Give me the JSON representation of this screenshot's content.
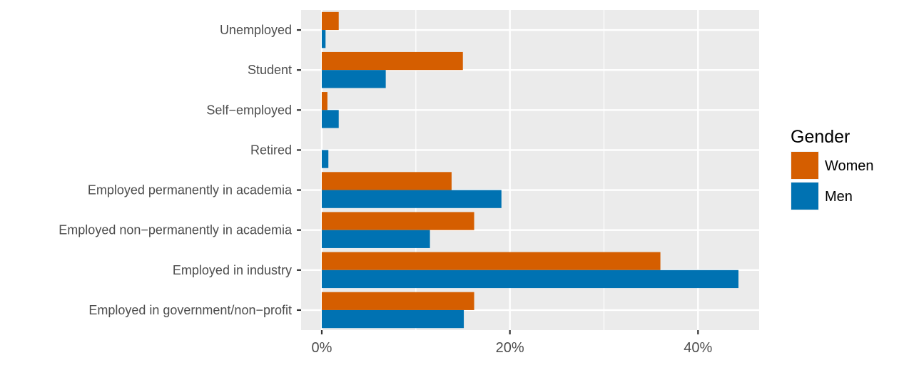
{
  "chart_data": {
    "type": "bar",
    "orientation": "horizontal",
    "title": "",
    "xlabel": "",
    "ylabel": "",
    "categories": [
      "Unemployed",
      "Student",
      "Self−employed",
      "Retired",
      "Employed permanently in academia",
      "Employed non−permanently in academia",
      "Employed in industry",
      "Employed in government/non−profit"
    ],
    "series": [
      {
        "name": "Women",
        "color": "#D55E00",
        "values": [
          1.8,
          15.0,
          0.6,
          0.0,
          13.8,
          16.2,
          36.0,
          16.2
        ]
      },
      {
        "name": "Men",
        "color": "#0072B2",
        "values": [
          0.4,
          6.8,
          1.8,
          0.7,
          19.1,
          11.5,
          44.3,
          15.1
        ]
      }
    ],
    "xlim": [
      -2.2,
      46.5
    ],
    "xticks": [
      0,
      20,
      40
    ],
    "xtick_labels": [
      "0%",
      "20%",
      "40%"
    ],
    "grid": true,
    "panel_background": "#EBEBEB",
    "legend": {
      "title": "Gender",
      "position": "right"
    }
  }
}
